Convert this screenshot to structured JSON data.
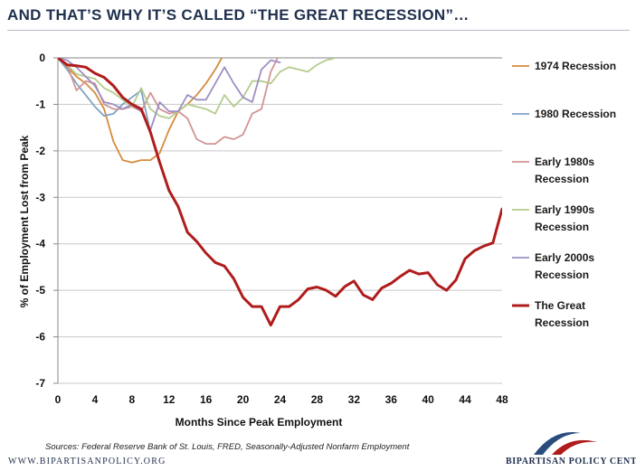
{
  "header": {
    "title": "AND THAT’S WHY IT’S CALLED “THE GREAT RECESSION”…"
  },
  "chart_data": {
    "type": "line",
    "title": "",
    "xlabel": "Months Since Peak Employment",
    "ylabel": "% of Employment Lost from Peak",
    "xlim": [
      0,
      48
    ],
    "ylim": [
      -7,
      0
    ],
    "x_ticks": [
      0,
      4,
      8,
      12,
      16,
      20,
      24,
      28,
      32,
      36,
      40,
      44,
      48
    ],
    "y_ticks": [
      0,
      -1,
      -2,
      -3,
      -4,
      -5,
      -6,
      -7
    ],
    "grid": "horizontal",
    "legend_position": "right",
    "series": [
      {
        "name": "1974 Recession",
        "color": "#d58b3c",
        "width": 1.8,
        "x": [
          0,
          1,
          2,
          3,
          4,
          5,
          6,
          7,
          8,
          9,
          10,
          11,
          12,
          13,
          14,
          15,
          16,
          17,
          18
        ],
        "y": [
          0,
          -0.2,
          -0.4,
          -0.55,
          -0.75,
          -1.1,
          -1.8,
          -2.2,
          -2.25,
          -2.2,
          -2.2,
          -2.05,
          -1.55,
          -1.15,
          -1.0,
          -0.8,
          -0.55,
          -0.25,
          0.1
        ]
      },
      {
        "name": "1980 Recession",
        "color": "#7da3c6",
        "width": 1.8,
        "x": [
          0,
          1,
          2,
          3,
          4,
          5,
          6,
          7,
          8,
          9,
          10
        ],
        "y": [
          0,
          -0.25,
          -0.55,
          -0.8,
          -1.05,
          -1.25,
          -1.2,
          -1.0,
          -0.85,
          -0.7,
          -1.6
        ]
      },
      {
        "name": "Early 1980s Recession",
        "color": "#d29494",
        "width": 1.8,
        "x": [
          0,
          1,
          2,
          3,
          4,
          5,
          6,
          7,
          8,
          9,
          10,
          11,
          12,
          13,
          14,
          15,
          16,
          17,
          18,
          19,
          20,
          21,
          22,
          23,
          24
        ],
        "y": [
          0,
          -0.15,
          -0.7,
          -0.5,
          -0.55,
          -1.0,
          -1.1,
          -1.1,
          -1.05,
          -1.15,
          -0.75,
          -1.1,
          -1.2,
          -1.15,
          -1.3,
          -1.75,
          -1.85,
          -1.85,
          -1.7,
          -1.75,
          -1.65,
          -1.2,
          -1.1,
          -0.3,
          0.1
        ]
      },
      {
        "name": "Early 1990s Recession",
        "color": "#b5cc8e",
        "width": 1.8,
        "x": [
          0,
          1,
          2,
          3,
          4,
          5,
          6,
          7,
          8,
          9,
          10,
          11,
          12,
          13,
          14,
          15,
          16,
          17,
          18,
          19,
          20,
          21,
          22,
          23,
          24,
          25,
          26,
          27,
          28,
          29,
          30
        ],
        "y": [
          0,
          -0.15,
          -0.35,
          -0.4,
          -0.45,
          -0.65,
          -0.75,
          -0.9,
          -1.05,
          -0.65,
          -1.1,
          -1.25,
          -1.3,
          -1.15,
          -1.0,
          -1.05,
          -1.1,
          -1.2,
          -0.8,
          -1.05,
          -0.85,
          -0.5,
          -0.5,
          -0.55,
          -0.3,
          -0.2,
          -0.25,
          -0.3,
          -0.15,
          -0.05,
          0.0
        ]
      },
      {
        "name": "Early 2000s Recession",
        "color": "#9d8fc2",
        "width": 1.8,
        "x": [
          0,
          1,
          2,
          3,
          4,
          5,
          6,
          7,
          8,
          9,
          10,
          11,
          12,
          13,
          14,
          15,
          16,
          17,
          18,
          19,
          20,
          21,
          22,
          23,
          24
        ],
        "y": [
          0,
          -0.05,
          -0.2,
          -0.4,
          -0.6,
          -0.95,
          -1.0,
          -1.1,
          -1.0,
          -1.15,
          -1.55,
          -0.95,
          -1.15,
          -1.15,
          -0.8,
          -0.9,
          -0.9,
          -0.55,
          -0.2,
          -0.55,
          -0.85,
          -0.95,
          -0.25,
          -0.05,
          -0.1
        ]
      },
      {
        "name": "The Great Recession",
        "color": "#b01c1c",
        "width": 3,
        "x": [
          0,
          1,
          2,
          3,
          4,
          5,
          6,
          7,
          8,
          9,
          10,
          11,
          12,
          13,
          14,
          15,
          16,
          17,
          18,
          19,
          20,
          21,
          22,
          23,
          24,
          25,
          26,
          27,
          28,
          29,
          30,
          31,
          32,
          33,
          34,
          35,
          36,
          37,
          38,
          39,
          40,
          41,
          42,
          43,
          44,
          45,
          46,
          47,
          48
        ],
        "y": [
          0,
          -0.15,
          -0.17,
          -0.2,
          -0.33,
          -0.42,
          -0.6,
          -0.85,
          -1.0,
          -1.1,
          -1.6,
          -2.25,
          -2.85,
          -3.2,
          -3.75,
          -3.95,
          -4.2,
          -4.4,
          -4.48,
          -4.75,
          -5.15,
          -5.35,
          -5.35,
          -5.75,
          -5.35,
          -5.35,
          -5.2,
          -4.97,
          -4.93,
          -5.0,
          -5.13,
          -4.92,
          -4.8,
          -5.1,
          -5.2,
          -4.95,
          -4.85,
          -4.7,
          -4.57,
          -4.65,
          -4.62,
          -4.88,
          -5.0,
          -4.78,
          -4.32,
          -4.15,
          -4.05,
          -3.98,
          -3.25
        ]
      }
    ],
    "legend": [
      {
        "lines": [
          "1974 Recession"
        ]
      },
      {
        "lines": [
          "1980 Recession"
        ]
      },
      {
        "lines": [
          "Early 1980s",
          "Recession"
        ]
      },
      {
        "lines": [
          "Early 1990s",
          "Recession"
        ]
      },
      {
        "lines": [
          "Early 2000s",
          "Recession"
        ]
      },
      {
        "lines": [
          "The Great",
          "Recession"
        ]
      }
    ]
  },
  "footer": {
    "source": "Sources: Federal Reserve Bank of St. Louis, FRED, Seasonally-Adjusted Nonfarm Employment",
    "website": "WWW.BIPARTISANPOLICY.ORG",
    "org_name": "BIPARTISAN POLICY CENTER"
  },
  "colors": {
    "brand_navy": "#1f2f4d",
    "brand_red": "#b01c1c",
    "logo_blue": "#2b4d7e"
  },
  "icons": {
    "logo": "bipartisan-arc-logo-icon"
  }
}
